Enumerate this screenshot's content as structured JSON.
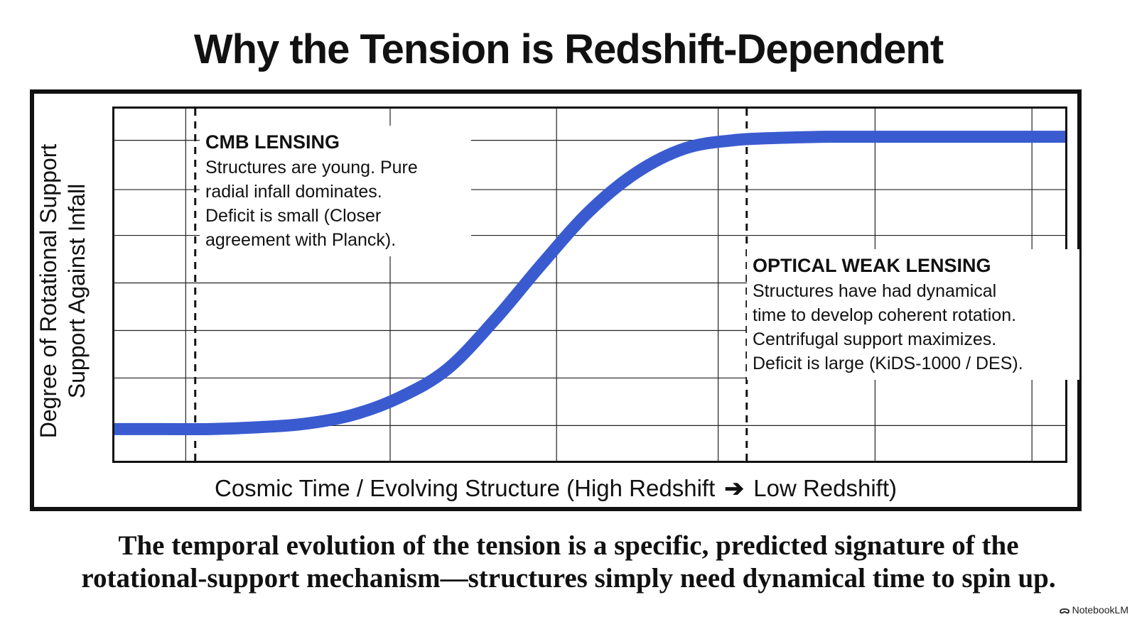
{
  "title": "Why the Tension is Redshift-Dependent",
  "colors": {
    "curve": "#3a5bd0",
    "grid": "#222222",
    "frame": "#111111"
  },
  "chart_data": {
    "type": "line",
    "title": "Why the Tension is Redshift-Dependent",
    "ylabel_lines": [
      "Degree of Rotational Support",
      "Support Against Infall"
    ],
    "xlabel_left": "Cosmic Time / Evolving Structure (High Redshift",
    "xlabel_arrow": "➔",
    "xlabel_right": "Low Redshift)",
    "xlim": [
      0,
      1
    ],
    "ylim": [
      0,
      1
    ],
    "grid": true,
    "series": [
      {
        "x": [
          0,
          0.05,
          0.1,
          0.15,
          0.2,
          0.25,
          0.3,
          0.35,
          0.4,
          0.45,
          0.5,
          0.55,
          0.6,
          0.65,
          0.7,
          0.75,
          0.8,
          0.85,
          0.9,
          0.95,
          1.0
        ],
        "y": [
          0.09,
          0.09,
          0.09,
          0.095,
          0.105,
          0.13,
          0.18,
          0.26,
          0.4,
          0.56,
          0.71,
          0.82,
          0.887,
          0.91,
          0.917,
          0.92,
          0.92,
          0.92,
          0.92,
          0.92,
          0.92
        ]
      }
    ],
    "reference_lines": [
      {
        "x": 0.085,
        "style": "dashed"
      },
      {
        "x": 0.665,
        "style": "dashed"
      }
    ],
    "annotations": [
      {
        "heading": "CMB LENSING",
        "lines": [
          "Structures are young. Pure",
          "radial infall dominates.",
          "Deficit is small (Closer",
          "agreement with Planck)."
        ]
      },
      {
        "heading": "OPTICAL WEAK LENSING",
        "lines": [
          "Structures have had dynamical",
          "time to develop coherent rotation.",
          "Centrifugal support maximizes.",
          "Deficit is large (KiDS-1000 / DES)."
        ]
      }
    ]
  },
  "caption": [
    "The temporal evolution of the tension is a specific, predicted signature of the",
    "rotational-support mechanism—structures simply need dynamical time to spin up."
  ],
  "brand": "NotebookLM"
}
